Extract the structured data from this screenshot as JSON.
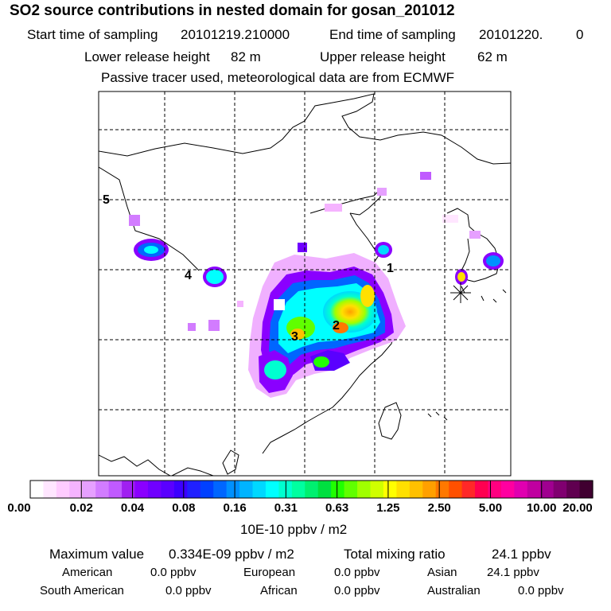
{
  "title": "SO2 source contributions in nested domain for gosan_201012",
  "sampling": {
    "start_label": "Start time of sampling",
    "start_value": "20101219.210000",
    "end_label": "End time of sampling",
    "end_value": "20101220.",
    "end_value_extra": "0"
  },
  "release": {
    "lower_label": "Lower release height",
    "lower_value": "82 m",
    "upper_label": "Upper release height",
    "upper_value": "62 m"
  },
  "note": "Passive tracer used, meteorological data are from ECMWF",
  "map": {
    "region_labels": [
      "1",
      "2",
      "3",
      "4",
      "5"
    ],
    "receptor_marker": "receptor-star"
  },
  "legend": {
    "tick_labels": [
      "0.00",
      "0.02",
      "0.04",
      "0.08",
      "0.16",
      "0.31",
      "0.63",
      "1.25",
      "2.50",
      "5.00",
      "10.00",
      "20.00"
    ],
    "unit": "10E-10 ppbv / m2",
    "colors": [
      "#ffffff",
      "#ffe6ff",
      "#ffccff",
      "#f5b3ff",
      "#e6a0ff",
      "#d27cff",
      "#c05aff",
      "#a020f0",
      "#8a00ff",
      "#7000ff",
      "#5a00ff",
      "#3c00ff",
      "#2020ff",
      "#0040ff",
      "#0066ff",
      "#0090ff",
      "#00b4ff",
      "#00d8ff",
      "#00ffff",
      "#00ffd0",
      "#00ffa0",
      "#00f070",
      "#00e040",
      "#20ff00",
      "#60ff00",
      "#a0ff00",
      "#d0ff00",
      "#ffff00",
      "#ffe000",
      "#ffc000",
      "#ffa000",
      "#ff7800",
      "#ff5000",
      "#ff2828",
      "#ff0050",
      "#ff0080",
      "#ff00a0",
      "#e000b0",
      "#c000a0",
      "#a00090",
      "#800070",
      "#600050",
      "#400030"
    ]
  },
  "stats": {
    "max_label": "Maximum value",
    "max_value": "0.334E-09 ppbv / m2",
    "total_label": "Total mixing ratio",
    "total_value": "24.1 ppbv",
    "regions": [
      {
        "name": "American",
        "value": "0.0 ppbv"
      },
      {
        "name": "European",
        "value": "0.0 ppbv"
      },
      {
        "name": "Asian",
        "value": "24.1 ppbv"
      },
      {
        "name": "South American",
        "value": "0.0 ppbv"
      },
      {
        "name": "African",
        "value": "0.0 ppbv"
      },
      {
        "name": "Australian",
        "value": "0.0 ppbv"
      }
    ]
  }
}
